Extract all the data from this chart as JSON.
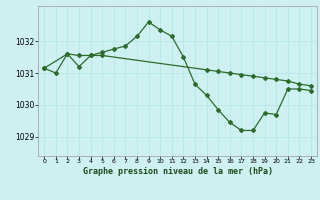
{
  "title": "Graphe pression niveau de la mer (hPa)",
  "background_color": "#cff0f0",
  "grid_color": "#b8e8e8",
  "line_color": "#2d6b2d",
  "x_ticks": [
    0,
    1,
    2,
    3,
    4,
    5,
    6,
    7,
    8,
    9,
    10,
    11,
    12,
    13,
    14,
    15,
    16,
    17,
    18,
    19,
    20,
    21,
    22,
    23
  ],
  "y_ticks": [
    1029,
    1030,
    1031,
    1032
  ],
  "ylim": [
    1028.4,
    1033.1
  ],
  "xlim": [
    -0.5,
    23.5
  ],
  "series1_x": [
    0,
    1,
    2,
    3,
    4,
    5,
    6,
    7,
    8,
    9,
    10,
    11,
    12,
    13,
    14,
    15,
    16,
    17,
    18,
    19,
    20,
    21,
    22,
    23
  ],
  "series1_y": [
    1031.15,
    1031.0,
    1031.6,
    1031.55,
    1031.55,
    1031.65,
    1031.75,
    1031.85,
    1032.15,
    1032.6,
    1032.35,
    1032.15,
    1031.5,
    1030.65,
    1030.3,
    1029.85,
    1029.45,
    1029.2,
    1029.2,
    1029.75,
    1029.7,
    1030.5,
    1030.5,
    1030.45
  ],
  "series2_x": [
    0,
    2,
    3,
    4,
    5,
    14,
    15,
    16,
    17,
    18,
    19,
    20,
    21,
    22,
    23
  ],
  "series2_y": [
    1031.15,
    1031.6,
    1031.2,
    1031.55,
    1031.55,
    1031.1,
    1031.05,
    1031.0,
    1030.95,
    1030.9,
    1030.85,
    1030.8,
    1030.75,
    1030.65,
    1030.6
  ]
}
